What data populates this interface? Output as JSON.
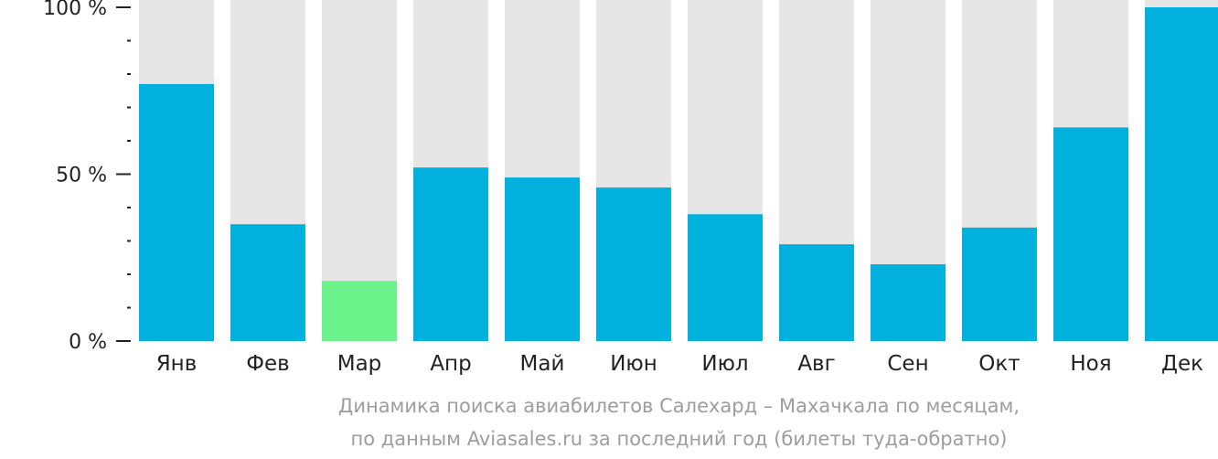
{
  "chart_data": {
    "type": "bar",
    "categories": [
      "Янв",
      "Фев",
      "Мар",
      "Апр",
      "Май",
      "Июн",
      "Июл",
      "Авг",
      "Сен",
      "Окт",
      "Ноя",
      "Дек"
    ],
    "values": [
      77,
      35,
      18,
      52,
      49,
      46,
      38,
      29,
      23,
      34,
      64,
      100
    ],
    "ylim": [
      0,
      100
    ],
    "y_ticks": [
      {
        "value": 0,
        "label": "0 %"
      },
      {
        "value": 50,
        "label": "50 %"
      },
      {
        "value": 100,
        "label": "100 %"
      }
    ],
    "y_minor_step": 10,
    "highlight_index": 2,
    "colors": {
      "bar": "#00b1dd",
      "highlight": "#6cf28a",
      "track": "#e6e6e6",
      "axis": "#222222",
      "tick_text": "#222222"
    },
    "caption_line1": "Динамика поиска авиабилетов Салехард – Махачкала по месяцам,",
    "caption_line2": "по данным Aviasales.ru за последний год (билеты туда-обратно)"
  }
}
